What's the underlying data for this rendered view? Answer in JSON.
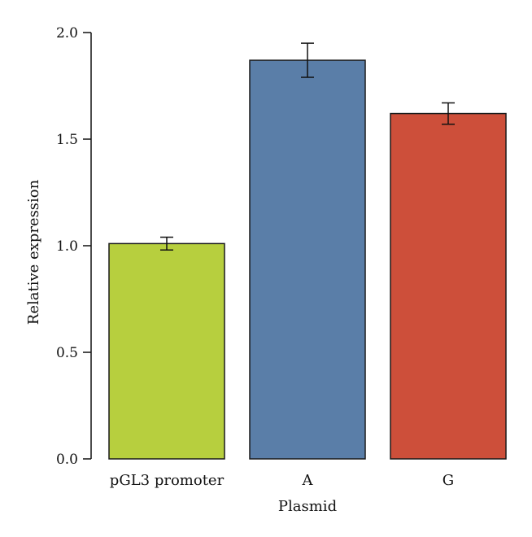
{
  "chart_data": {
    "type": "bar",
    "title": "",
    "xlabel": "Plasmid",
    "ylabel": "Relative expression",
    "categories": [
      "pGL3 promoter",
      "A",
      "G"
    ],
    "values": [
      1.01,
      1.87,
      1.62
    ],
    "error_bars": [
      0.03,
      0.08,
      0.05
    ],
    "bar_colors": [
      "#b7cf3e",
      "#5a7ea8",
      "#cd4f3a"
    ],
    "ylim": [
      0,
      2.0
    ],
    "yticks": [
      0.0,
      0.5,
      1.0,
      1.5,
      2.0
    ],
    "ytick_labels": [
      "0.0",
      "0.5",
      "1.0",
      "1.5",
      "2.0"
    ],
    "grid": false,
    "legend": "none"
  }
}
